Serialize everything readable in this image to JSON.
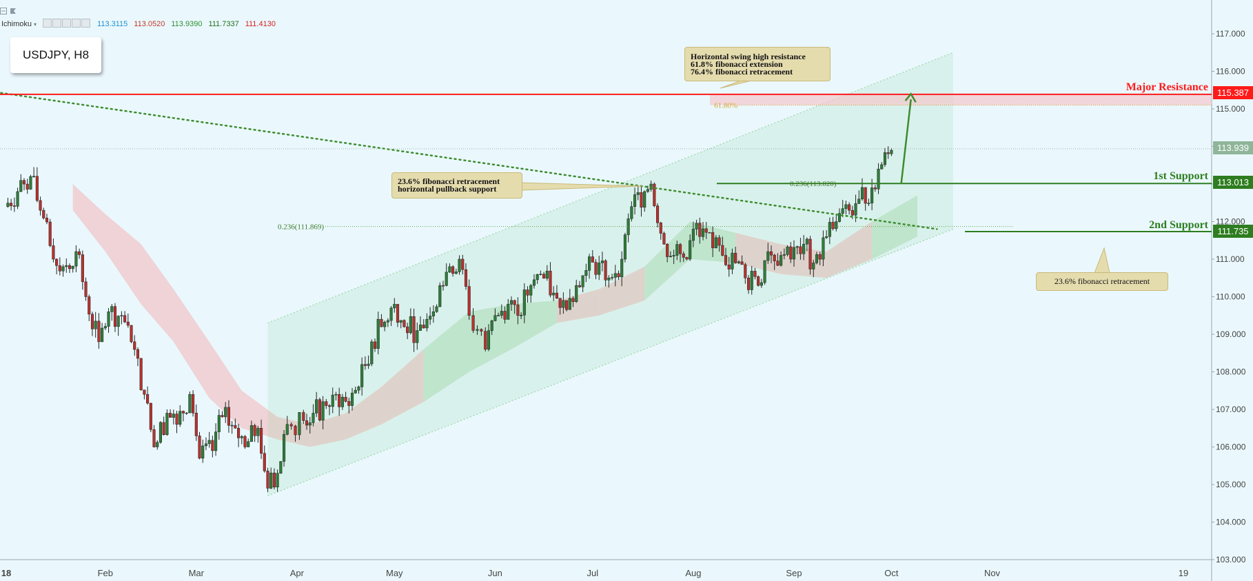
{
  "toolbar": {
    "icons": [
      "collapse-icon",
      "flag-icon"
    ]
  },
  "indicator": {
    "name": "Ichimoku",
    "values": [
      {
        "text": "113.3115",
        "color": "#1e90cf"
      },
      {
        "text": "113.0520",
        "color": "#c0392b"
      },
      {
        "text": "113.9390",
        "color": "#2f8f2f"
      },
      {
        "text": "111.7337",
        "color": "#1f6e1f"
      },
      {
        "text": "111.4130",
        "color": "#d42020"
      }
    ]
  },
  "symbol": "USDJPY, H8",
  "annotations": {
    "top": "Horizontal swing high resistance\n61.8% fibonacci extension\n76.4% fibonacci retracement",
    "fib_left": "23.6% fibonacci retracement\nhorizontal pullback support",
    "fib_right": "23.6% fibonacci retracement",
    "fib618": "61.80%",
    "fib_label_a": "0.236(111.869)",
    "fib_label_b": "0.236(113.020)"
  },
  "levels": {
    "major": {
      "name": "Major Resistance",
      "price": "115.387",
      "color": "#ff1a1a",
      "value": 115.387
    },
    "first": {
      "name": "1st Support",
      "price": "113.013",
      "color": "#2e7d20",
      "value": 113.013
    },
    "second": {
      "name": "2nd Support",
      "price": "111.735",
      "color": "#2e7d20",
      "value": 111.735
    },
    "current": {
      "price": "113.939",
      "color": "#8fb59a",
      "value": 113.939
    }
  },
  "chart_data": {
    "type": "line",
    "title": "USDJPY, H8",
    "x_ticks": [
      "18",
      "Feb",
      "Mar",
      "Apr",
      "May",
      "Jun",
      "Jul",
      "Aug",
      "Sep",
      "Oct",
      "Nov",
      "19"
    ],
    "y_ticks": [
      "117.000",
      "116.000",
      "115.000",
      "114.000",
      "113.000",
      "112.000",
      "111.000",
      "110.000",
      "109.000",
      "108.000",
      "107.000",
      "106.000",
      "105.000",
      "104.000",
      "103.000"
    ],
    "ylim": [
      103.0,
      117.0
    ],
    "series": [
      {
        "values": [
          [
            "2018-01-01",
            112.4
          ],
          [
            "2018-01-05",
            112.8
          ],
          [
            "2018-01-09",
            113.2
          ],
          [
            "2018-01-12",
            112.3
          ],
          [
            "2018-01-16",
            111.0
          ],
          [
            "2018-01-19",
            110.8
          ],
          [
            "2018-01-23",
            111.2
          ],
          [
            "2018-01-26",
            110.0
          ],
          [
            "2018-01-30",
            108.8
          ],
          [
            "2018-02-02",
            109.6
          ],
          [
            "2018-02-06",
            109.5
          ],
          [
            "2018-02-09",
            108.8
          ],
          [
            "2018-02-13",
            107.4
          ],
          [
            "2018-02-16",
            106.0
          ],
          [
            "2018-02-20",
            106.9
          ],
          [
            "2018-02-23",
            106.6
          ],
          [
            "2018-02-27",
            107.4
          ],
          [
            "2018-03-02",
            105.7
          ],
          [
            "2018-03-06",
            105.9
          ],
          [
            "2018-03-09",
            106.8
          ],
          [
            "2018-03-13",
            106.5
          ],
          [
            "2018-03-16",
            106.0
          ],
          [
            "2018-03-20",
            106.5
          ],
          [
            "2018-03-23",
            104.9
          ],
          [
            "2018-03-26",
            105.3
          ],
          [
            "2018-03-29",
            106.6
          ],
          [
            "2018-04-03",
            106.7
          ],
          [
            "2018-04-06",
            106.9
          ],
          [
            "2018-04-10",
            107.1
          ],
          [
            "2018-04-13",
            107.4
          ],
          [
            "2018-04-17",
            107.1
          ],
          [
            "2018-04-20",
            107.6
          ],
          [
            "2018-04-24",
            108.8
          ],
          [
            "2018-04-27",
            109.2
          ],
          [
            "2018-05-01",
            109.8
          ],
          [
            "2018-05-04",
            109.2
          ],
          [
            "2018-05-08",
            109.1
          ],
          [
            "2018-05-11",
            109.4
          ],
          [
            "2018-05-15",
            110.3
          ],
          [
            "2018-05-18",
            110.8
          ],
          [
            "2018-05-21",
            111.0
          ],
          [
            "2018-05-24",
            109.5
          ],
          [
            "2018-05-29",
            108.6
          ],
          [
            "2018-06-01",
            109.5
          ],
          [
            "2018-06-05",
            109.8
          ],
          [
            "2018-06-08",
            109.5
          ],
          [
            "2018-06-12",
            110.3
          ],
          [
            "2018-06-15",
            110.6
          ],
          [
            "2018-06-19",
            110.1
          ],
          [
            "2018-06-22",
            109.9
          ],
          [
            "2018-06-26",
            110.3
          ],
          [
            "2018-06-29",
            110.7
          ],
          [
            "2018-07-03",
            110.9
          ],
          [
            "2018-07-06",
            110.5
          ],
          [
            "2018-07-10",
            111.0
          ],
          [
            "2018-07-13",
            112.4
          ],
          [
            "2018-07-17",
            112.8
          ],
          [
            "2018-07-19",
            113.0
          ],
          [
            "2018-07-23",
            111.4
          ],
          [
            "2018-07-26",
            111.1
          ],
          [
            "2018-07-30",
            111.0
          ],
          [
            "2018-08-01",
            111.8
          ],
          [
            "2018-08-03",
            111.6
          ],
          [
            "2018-08-07",
            111.3
          ],
          [
            "2018-08-10",
            111.1
          ],
          [
            "2018-08-14",
            110.9
          ],
          [
            "2018-08-17",
            110.5
          ],
          [
            "2018-08-21",
            110.3
          ],
          [
            "2018-08-24",
            111.2
          ],
          [
            "2018-08-28",
            111.1
          ],
          [
            "2018-08-31",
            111.0
          ],
          [
            "2018-09-04",
            111.4
          ],
          [
            "2018-09-07",
            110.9
          ],
          [
            "2018-09-11",
            111.6
          ],
          [
            "2018-09-14",
            112.0
          ],
          [
            "2018-09-18",
            112.3
          ],
          [
            "2018-09-21",
            112.6
          ],
          [
            "2018-09-25",
            112.9
          ],
          [
            "2018-09-27",
            113.4
          ],
          [
            "2018-10-01",
            113.9
          ]
        ]
      }
    ],
    "ichimoku_cloud": [
      [
        "2018-01-22",
        113.0,
        112.3
      ],
      [
        "2018-02-01",
        112.2,
        111.2
      ],
      [
        "2018-02-12",
        111.4,
        109.8
      ],
      [
        "2018-02-22",
        110.2,
        108.8
      ],
      [
        "2018-03-05",
        108.8,
        107.3
      ],
      [
        "2018-03-15",
        107.5,
        106.5
      ],
      [
        "2018-03-26",
        106.8,
        106.2
      ],
      [
        "2018-04-05",
        106.6,
        106.0
      ],
      [
        "2018-04-16",
        106.9,
        106.2
      ],
      [
        "2018-04-27",
        107.6,
        106.6
      ],
      [
        "2018-05-10",
        108.6,
        107.2
      ],
      [
        "2018-05-24",
        109.6,
        108.0
      ],
      [
        "2018-06-06",
        109.8,
        108.6
      ],
      [
        "2018-06-20",
        109.9,
        109.3
      ],
      [
        "2018-07-03",
        110.2,
        109.5
      ],
      [
        "2018-07-17",
        110.8,
        109.9
      ],
      [
        "2018-07-31",
        112.0,
        111.0
      ],
      [
        "2018-08-14",
        111.7,
        110.9
      ],
      [
        "2018-08-28",
        111.4,
        110.6
      ],
      [
        "2018-09-11",
        111.2,
        110.5
      ],
      [
        "2018-09-25",
        112.0,
        111.0
      ],
      [
        "2018-10-09",
        112.7,
        111.6
      ]
    ],
    "channel": {
      "upper": [
        [
          "2018-03-23",
          109.3
        ],
        [
          "2018-10-20",
          116.5
        ]
      ],
      "lower": [
        [
          "2018-03-23",
          104.7
        ],
        [
          "2018-10-20",
          111.8
        ]
      ]
    },
    "trendline": [
      [
        "2017-12-25",
        115.5
      ],
      [
        "2018-10-15",
        111.8
      ]
    ],
    "projection": [
      [
        "2018-10-04",
        113.0
      ],
      [
        "2018-10-07",
        115.4
      ]
    ],
    "fib_levels": [
      {
        "label": "0.236(111.869)",
        "value": 111.869
      },
      {
        "label": "0.236(113.020)",
        "value": 113.02
      },
      {
        "label": "61.80%",
        "value": 115.1
      }
    ],
    "grid": false,
    "legend": "none"
  }
}
